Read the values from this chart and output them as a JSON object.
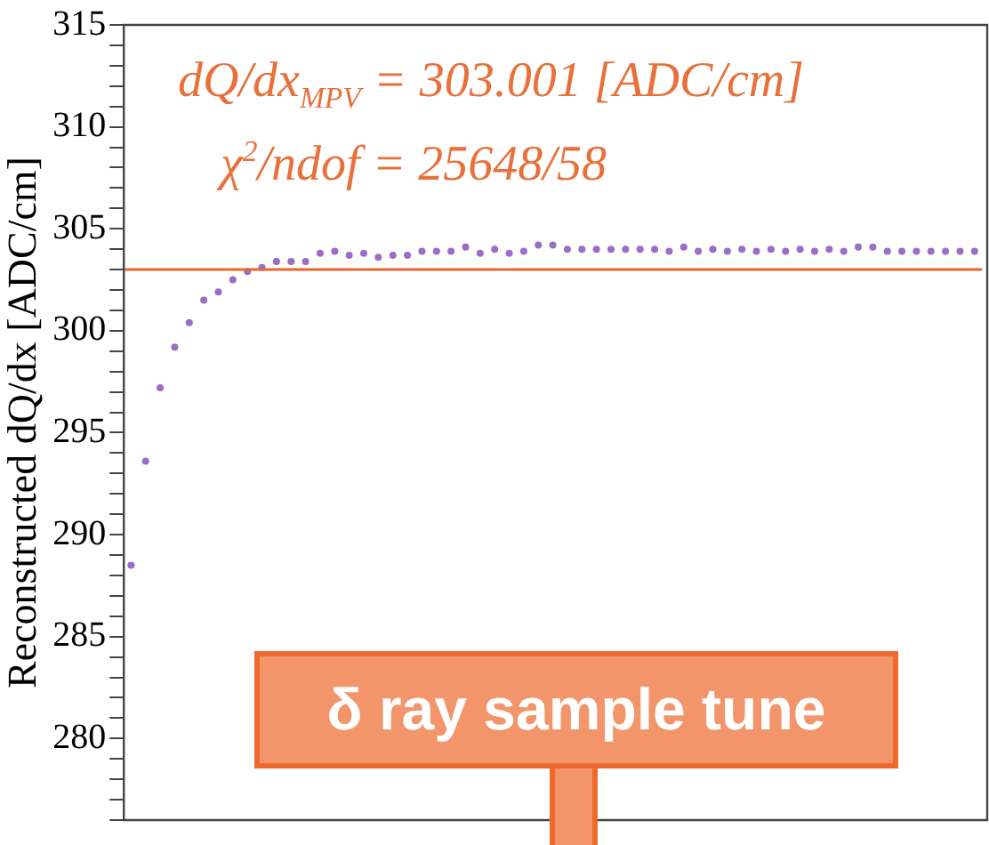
{
  "chart_data": {
    "type": "scatter",
    "ylabel": "Reconstructed dQ/dx [ADC/cm]",
    "categories": [
      null,
      null,
      null,
      null,
      null,
      null,
      null,
      null,
      null,
      null,
      null,
      null,
      null,
      null,
      null,
      null,
      null,
      null,
      null,
      null,
      null,
      null,
      null,
      null,
      null,
      null,
      null,
      null,
      null,
      null,
      null,
      null,
      null,
      null,
      null,
      null,
      null,
      null,
      null,
      null,
      null,
      null,
      null,
      null,
      null,
      null,
      null,
      null,
      null,
      null,
      null,
      null,
      null,
      null,
      null,
      null,
      null,
      null,
      null
    ],
    "series": [
      {
        "color": "#9b6dc6",
        "values": [
          288.5,
          293.6,
          297.2,
          299.2,
          300.4,
          301.5,
          301.9,
          302.5,
          302.9,
          303.1,
          303.4,
          303.4,
          303.4,
          303.8,
          303.9,
          303.7,
          303.8,
          303.6,
          303.7,
          303.7,
          303.9,
          303.9,
          303.9,
          304.1,
          303.8,
          304.0,
          303.8,
          303.9,
          304.2,
          304.2,
          304.0,
          304.0,
          304.0,
          304.0,
          304.0,
          304.0,
          304.0,
          303.9,
          304.1,
          303.9,
          304.0,
          303.9,
          304.0,
          303.9,
          304.0,
          303.9,
          304.0,
          303.9,
          304.0,
          303.9,
          304.1,
          304.1,
          303.9,
          303.9,
          303.9,
          303.9,
          303.9,
          303.9,
          303.9
        ]
      }
    ],
    "ylim": [
      276,
      315
    ],
    "yticks": [
      {
        "value": 276,
        "label": null
      },
      {
        "value": 277,
        "label": null
      },
      {
        "value": 278,
        "label": null
      },
      {
        "value": 279,
        "label": null
      },
      280,
      {
        "value": 281,
        "label": null
      },
      {
        "value": 282,
        "label": null
      },
      {
        "value": 283,
        "label": null
      },
      {
        "value": 284,
        "label": null
      },
      285,
      {
        "value": 286,
        "label": null
      },
      {
        "value": 287,
        "label": null
      },
      {
        "value": 288,
        "label": null
      },
      {
        "value": 289,
        "label": null
      },
      290,
      {
        "value": 291,
        "label": null
      },
      {
        "value": 292,
        "label": null
      },
      {
        "value": 293,
        "label": null
      },
      {
        "value": 294,
        "label": null
      },
      295,
      {
        "value": 296,
        "label": null
      },
      {
        "value": 297,
        "label": null
      },
      {
        "value": 298,
        "label": null
      },
      {
        "value": 299,
        "label": null
      },
      300,
      {
        "value": 301,
        "label": null
      },
      {
        "value": 302,
        "label": null
      },
      {
        "value": 303,
        "label": null
      },
      {
        "value": 304,
        "label": null
      },
      305,
      {
        "value": 306,
        "label": null
      },
      {
        "value": 307,
        "label": null
      },
      {
        "value": 308,
        "label": null
      },
      {
        "value": 309,
        "label": null
      },
      310,
      {
        "value": 311,
        "label": null
      },
      {
        "value": 312,
        "label": null
      },
      {
        "value": 313,
        "label": null
      },
      {
        "value": 314,
        "label": null
      },
      315
    ],
    "ref_lines": [
      {
        "axis": "y",
        "value": 303.001,
        "color": "#e2692e"
      }
    ],
    "annotations": [
      "dQ/dx$_{MPV}$ = 303.001 [ADC/cm]",
      "χ$^{2}$/ndof = 25648/58",
      "δ ray sample tune"
    ],
    "marker": "circle",
    "grid": false,
    "legend": false,
    "tick_labels": "y"
  }
}
